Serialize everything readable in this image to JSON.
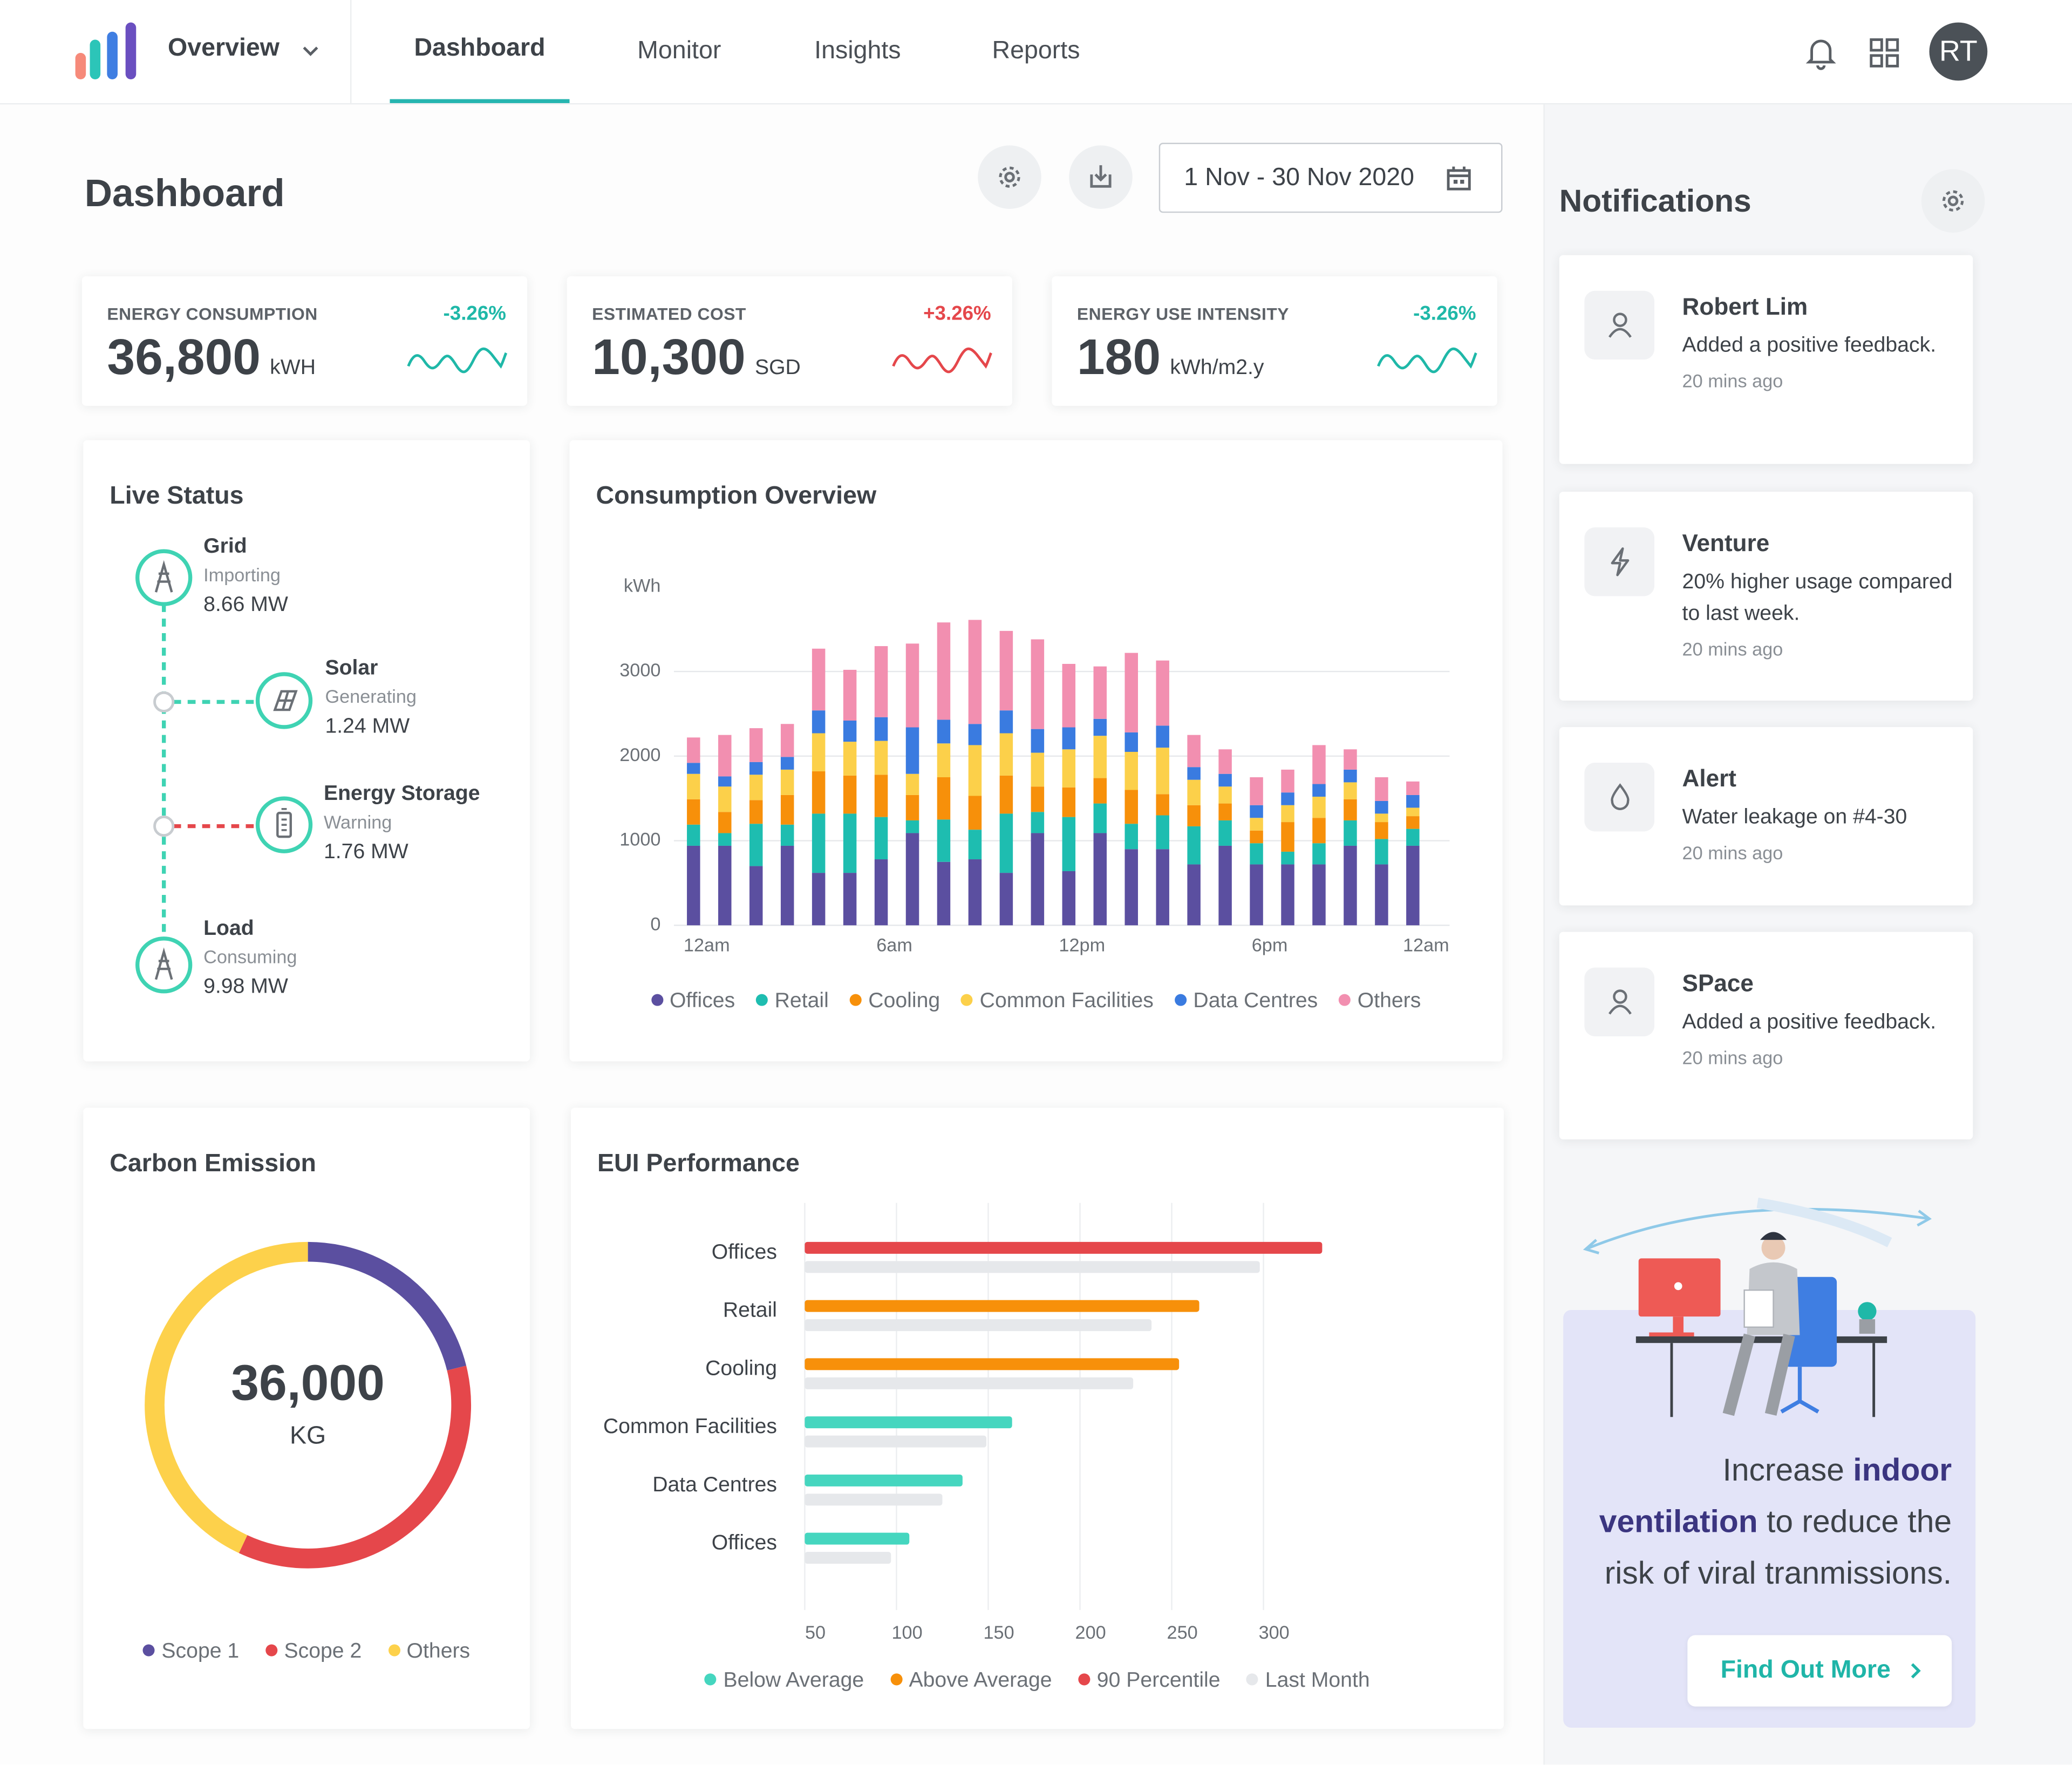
{
  "nav": {
    "brand": "Overview",
    "tabs": [
      "Dashboard",
      "Monitor",
      "Insights",
      "Reports"
    ],
    "avatar": "RT"
  },
  "header": {
    "title": "Dashboard",
    "date_range": "1 Nov - 30 Nov 2020"
  },
  "kpis": [
    {
      "label": "ENERGY CONSUMPTION",
      "value": "36,800",
      "unit": "kWH",
      "change": "-3.26%",
      "color": "#1fb8a8"
    },
    {
      "label": "ESTIMATED COST",
      "value": "10,300",
      "unit": "SGD",
      "change": "+3.26%",
      "color": "#e5474b"
    },
    {
      "label": "ENERGY USE INTENSITY",
      "value": "180",
      "unit": "kWh/m2.y",
      "change": "-3.26%",
      "color": "#1fb8a8"
    }
  ],
  "live_status": {
    "title": "Live Status",
    "nodes": [
      {
        "name": "Grid",
        "status": "Importing",
        "value": "8.66 MW"
      },
      {
        "name": "Solar",
        "status": "Generating",
        "value": "1.24 MW"
      },
      {
        "name": "Energy Storage",
        "status": "Warning",
        "value": "1.76 MW"
      },
      {
        "name": "Load",
        "status": "Consuming",
        "value": "9.98 MW"
      }
    ]
  },
  "chart_data": [
    {
      "type": "bar",
      "stacked": true,
      "title": "Consumption Overview",
      "y_label": "kWh",
      "categories": [
        "12am",
        null,
        null,
        null,
        null,
        null,
        "6am",
        null,
        null,
        null,
        null,
        null,
        "12pm",
        null,
        null,
        null,
        null,
        null,
        "6pm",
        null,
        null,
        null,
        null,
        "12am"
      ],
      "series": [
        {
          "name": "Offices",
          "color": "#5b4fa0",
          "values": [
            940,
            940,
            700,
            940,
            620,
            620,
            780,
            1090,
            750,
            780,
            620,
            1090,
            640,
            1090,
            900,
            900,
            720,
            940,
            720,
            720,
            720,
            940,
            720,
            940
          ]
        },
        {
          "name": "Retail",
          "color": "#1ebdb0",
          "values": [
            250,
            150,
            500,
            250,
            700,
            700,
            500,
            150,
            500,
            350,
            700,
            250,
            640,
            350,
            300,
            400,
            450,
            300,
            250,
            150,
            250,
            300,
            300,
            200
          ]
        },
        {
          "name": "Cooling",
          "color": "#f7900a",
          "values": [
            300,
            250,
            280,
            350,
            500,
            450,
            500,
            300,
            500,
            400,
            450,
            300,
            350,
            300,
            400,
            250,
            250,
            200,
            150,
            350,
            300,
            250,
            200,
            150
          ]
        },
        {
          "name": "Common Facilities",
          "color": "#fcd04a",
          "values": [
            300,
            300,
            300,
            300,
            450,
            400,
            400,
            250,
            400,
            600,
            500,
            400,
            450,
            500,
            450,
            550,
            300,
            200,
            150,
            200,
            250,
            200,
            100,
            100
          ]
        },
        {
          "name": "Data Centres",
          "color": "#3a7be0",
          "values": [
            130,
            120,
            150,
            150,
            270,
            250,
            280,
            550,
            280,
            250,
            270,
            280,
            260,
            200,
            230,
            260,
            150,
            150,
            150,
            150,
            150,
            150,
            150,
            150
          ]
        },
        {
          "name": "Others",
          "color": "#f28fb0",
          "values": [
            300,
            490,
            400,
            390,
            730,
            600,
            840,
            990,
            1150,
            1230,
            940,
            1060,
            750,
            620,
            940,
            770,
            380,
            290,
            330,
            270,
            460,
            240,
            280,
            160
          ]
        }
      ],
      "ylim": [
        0,
        4000
      ],
      "yticks": [
        0,
        1000,
        2000,
        3000
      ],
      "grid": true
    },
    {
      "type": "donut",
      "title": "Carbon Emission",
      "center_value": "36,000",
      "center_unit": "KG",
      "categories": [
        "Scope 1",
        "Scope 2",
        "Others"
      ],
      "values": [
        7600,
        12900,
        15500
      ],
      "colors": [
        "#5b4fa0",
        "#e5474b",
        "#fdd14b"
      ]
    },
    {
      "type": "barh",
      "title": "EUI Performance",
      "categories": [
        "Offices",
        "Retail",
        "Cooling",
        "Common Facilities",
        "Data Centres",
        "Offices"
      ],
      "series": [
        {
          "name": "Below Average",
          "color": "#45d6bf",
          "values": [
            null,
            null,
            null,
            163,
            136,
            107
          ]
        },
        {
          "name": "Above Average",
          "color": "#f7900a",
          "values": [
            null,
            265,
            254,
            null,
            null,
            null
          ]
        },
        {
          "name": "90 Percentile",
          "color": "#e5474b",
          "values": [
            332,
            null,
            null,
            null,
            null,
            null
          ]
        },
        {
          "name": "Last Month",
          "color": "#e6e8eb",
          "values": [
            298,
            239,
            229,
            149,
            125,
            97
          ]
        }
      ],
      "xlim": [
        50,
        400
      ],
      "xticks": [
        50,
        100,
        150,
        200,
        250,
        300
      ],
      "grid": true
    }
  ],
  "notifications": {
    "title": "Notifications",
    "items": [
      {
        "name": "Robert Lim",
        "message": "Added a positive feedback.",
        "time": "20 mins ago"
      },
      {
        "name": "Venture",
        "message": "20% higher usage compared to last week.",
        "time": "20 mins ago"
      },
      {
        "name": "Alert",
        "message": "Water leakage on #4-30",
        "time": "20 mins ago"
      },
      {
        "name": "SPace",
        "message": "Added a positive feedback.",
        "time": "20 mins ago"
      }
    ]
  },
  "promo": {
    "text": [
      "Increase",
      "indoor",
      "ventilation",
      "to reduce the",
      "risk of viral tranmissions."
    ],
    "button": "Find Out More"
  }
}
